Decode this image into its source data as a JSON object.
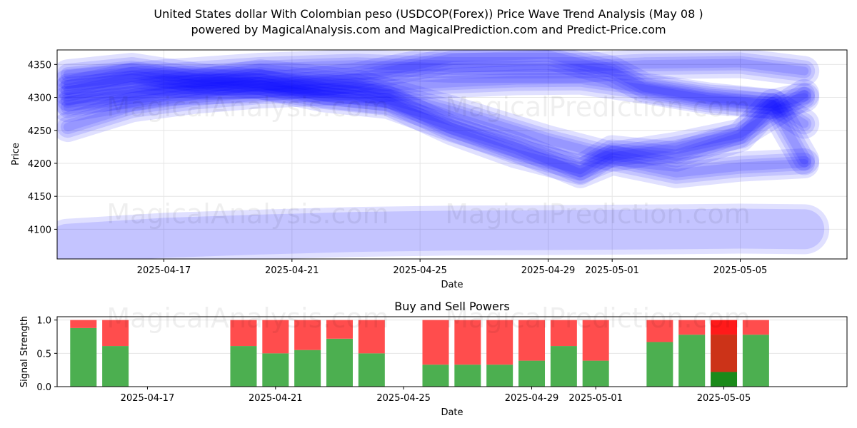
{
  "figure": {
    "title_line1": "United States dollar With Colombian peso (USDCOP(Forex)) Price Wave Trend Analysis (May 08 )",
    "title_line2": "powered by MagicalAnalysis.com and MagicalPrediction.com and Predict-Price.com",
    "watermarks": [
      "MagicalAnalysis.com",
      "MagicalPrediction.com"
    ]
  },
  "chart_data": [
    {
      "type": "line",
      "xlabel": "Date",
      "ylabel": "Price",
      "xlim": [
        "2025-04-13 16:00",
        "2025-05-08 08:00"
      ],
      "ylim": [
        4055,
        4372
      ],
      "x_ticks": [
        "2025-04-17",
        "2025-04-21",
        "2025-04-25",
        "2025-04-29",
        "2025-05-01",
        "2025-05-05"
      ],
      "y_ticks": [
        4100,
        4150,
        4200,
        4250,
        4300,
        4350
      ],
      "grid": true,
      "line_color": "#0000ff",
      "series": [
        {
          "x": [
            "2025-04-14",
            "2025-04-16",
            "2025-04-18",
            "2025-04-20",
            "2025-04-22",
            "2025-04-24",
            "2025-04-26",
            "2025-04-28",
            "2025-04-30",
            "2025-05-02",
            "2025-05-04",
            "2025-05-06",
            "2025-05-07"
          ],
          "values": [
            4255,
            4285,
            4298,
            4306,
            4310,
            4316,
            4322,
            4326,
            4327,
            4313,
            4297,
            4290,
            4300
          ]
        },
        {
          "x": [
            "2025-04-14",
            "2025-04-17",
            "2025-04-20",
            "2025-04-23",
            "2025-04-26",
            "2025-04-29",
            "2025-05-01",
            "2025-05-02",
            "2025-05-04",
            "2025-05-06",
            "2025-05-07"
          ],
          "values": [
            4285,
            4310,
            4315,
            4330,
            4360,
            4365,
            4340,
            4315,
            4300,
            4290,
            4260
          ]
        },
        {
          "x": [
            "2025-04-14",
            "2025-04-16",
            "2025-04-18",
            "2025-04-20",
            "2025-04-22",
            "2025-04-24",
            "2025-04-26",
            "2025-04-28",
            "2025-04-30",
            "2025-05-01",
            "2025-05-03",
            "2025-05-05",
            "2025-05-07"
          ],
          "values": [
            4310,
            4330,
            4320,
            4320,
            4300,
            4290,
            4255,
            4225,
            4185,
            4205,
            4185,
            4195,
            4200
          ]
        },
        {
          "x": [
            "2025-04-14",
            "2025-04-16",
            "2025-04-18",
            "2025-04-20",
            "2025-04-22",
            "2025-04-24",
            "2025-04-26",
            "2025-04-28",
            "2025-04-30",
            "2025-05-01",
            "2025-05-03",
            "2025-05-05",
            "2025-05-06",
            "2025-05-07"
          ],
          "values": [
            4335,
            4345,
            4330,
            4320,
            4305,
            4295,
            4250,
            4215,
            4190,
            4220,
            4210,
            4240,
            4290,
            4205
          ]
        },
        {
          "x": [
            "2025-04-14",
            "2025-04-17",
            "2025-04-20",
            "2025-04-23",
            "2025-04-26",
            "2025-04-29",
            "2025-05-01",
            "2025-05-03",
            "2025-05-05",
            "2025-05-07"
          ],
          "values": [
            4295,
            4312,
            4335,
            4320,
            4280,
            4235,
            4210,
            4225,
            4245,
            4305
          ]
        },
        {
          "x": [
            "2025-04-14",
            "2025-04-17",
            "2025-04-20",
            "2025-04-23",
            "2025-04-26",
            "2025-04-30",
            "2025-05-02",
            "2025-05-05",
            "2025-05-07"
          ],
          "values": [
            4320,
            4335,
            4345,
            4350,
            4345,
            4345,
            4350,
            4352,
            4340
          ]
        },
        {
          "x": [
            "2025-04-14",
            "2025-04-17",
            "2025-04-20",
            "2025-04-23",
            "2025-04-26",
            "2025-04-30",
            "2025-05-03",
            "2025-05-05",
            "2025-05-07"
          ],
          "values": [
            4078,
            4087,
            4092,
            4096,
            4098,
            4099,
            4100,
            4101,
            4100
          ]
        }
      ]
    },
    {
      "type": "bar",
      "title": "Buy and Sell Powers",
      "xlabel": "Date",
      "ylabel": "Signal Strength",
      "xlim": [
        "2025-04-13 16:00",
        "2025-05-08 08:00"
      ],
      "ylim": [
        0,
        1.05
      ],
      "x_ticks": [
        "2025-04-17",
        "2025-04-21",
        "2025-04-25",
        "2025-04-29",
        "2025-05-01",
        "2025-05-05"
      ],
      "y_ticks": [
        "0.0",
        "0.5",
        "1.0"
      ],
      "grid": true,
      "buy_color": "#4caf50",
      "sell_color": "#ff4d4d",
      "highlight_buy_color": "#1a8a1a",
      "highlight_sell_color": "#cc3318",
      "highlight_top_color": "#ff1a1a",
      "categories": [
        "2025-04-15",
        "2025-04-16",
        "2025-04-20",
        "2025-04-21",
        "2025-04-22",
        "2025-04-23",
        "2025-04-24",
        "2025-04-26",
        "2025-04-27",
        "2025-04-28",
        "2025-04-29",
        "2025-04-30",
        "2025-05-01",
        "2025-05-03",
        "2025-05-04",
        "2025-05-05",
        "2025-05-06"
      ],
      "series": [
        {
          "name": "Buy",
          "values": [
            0.88,
            0.61,
            0.61,
            0.5,
            0.55,
            0.72,
            0.5,
            0.33,
            0.33,
            0.33,
            0.39,
            0.61,
            0.39,
            0.67,
            0.78,
            0.22,
            0.78
          ]
        },
        {
          "name": "Sell",
          "values": [
            0.12,
            0.39,
            0.39,
            0.5,
            0.45,
            0.28,
            0.5,
            0.67,
            0.67,
            0.67,
            0.61,
            0.39,
            0.61,
            0.33,
            0.22,
            0.78,
            0.22
          ]
        }
      ],
      "highlight_index": 15
    }
  ]
}
